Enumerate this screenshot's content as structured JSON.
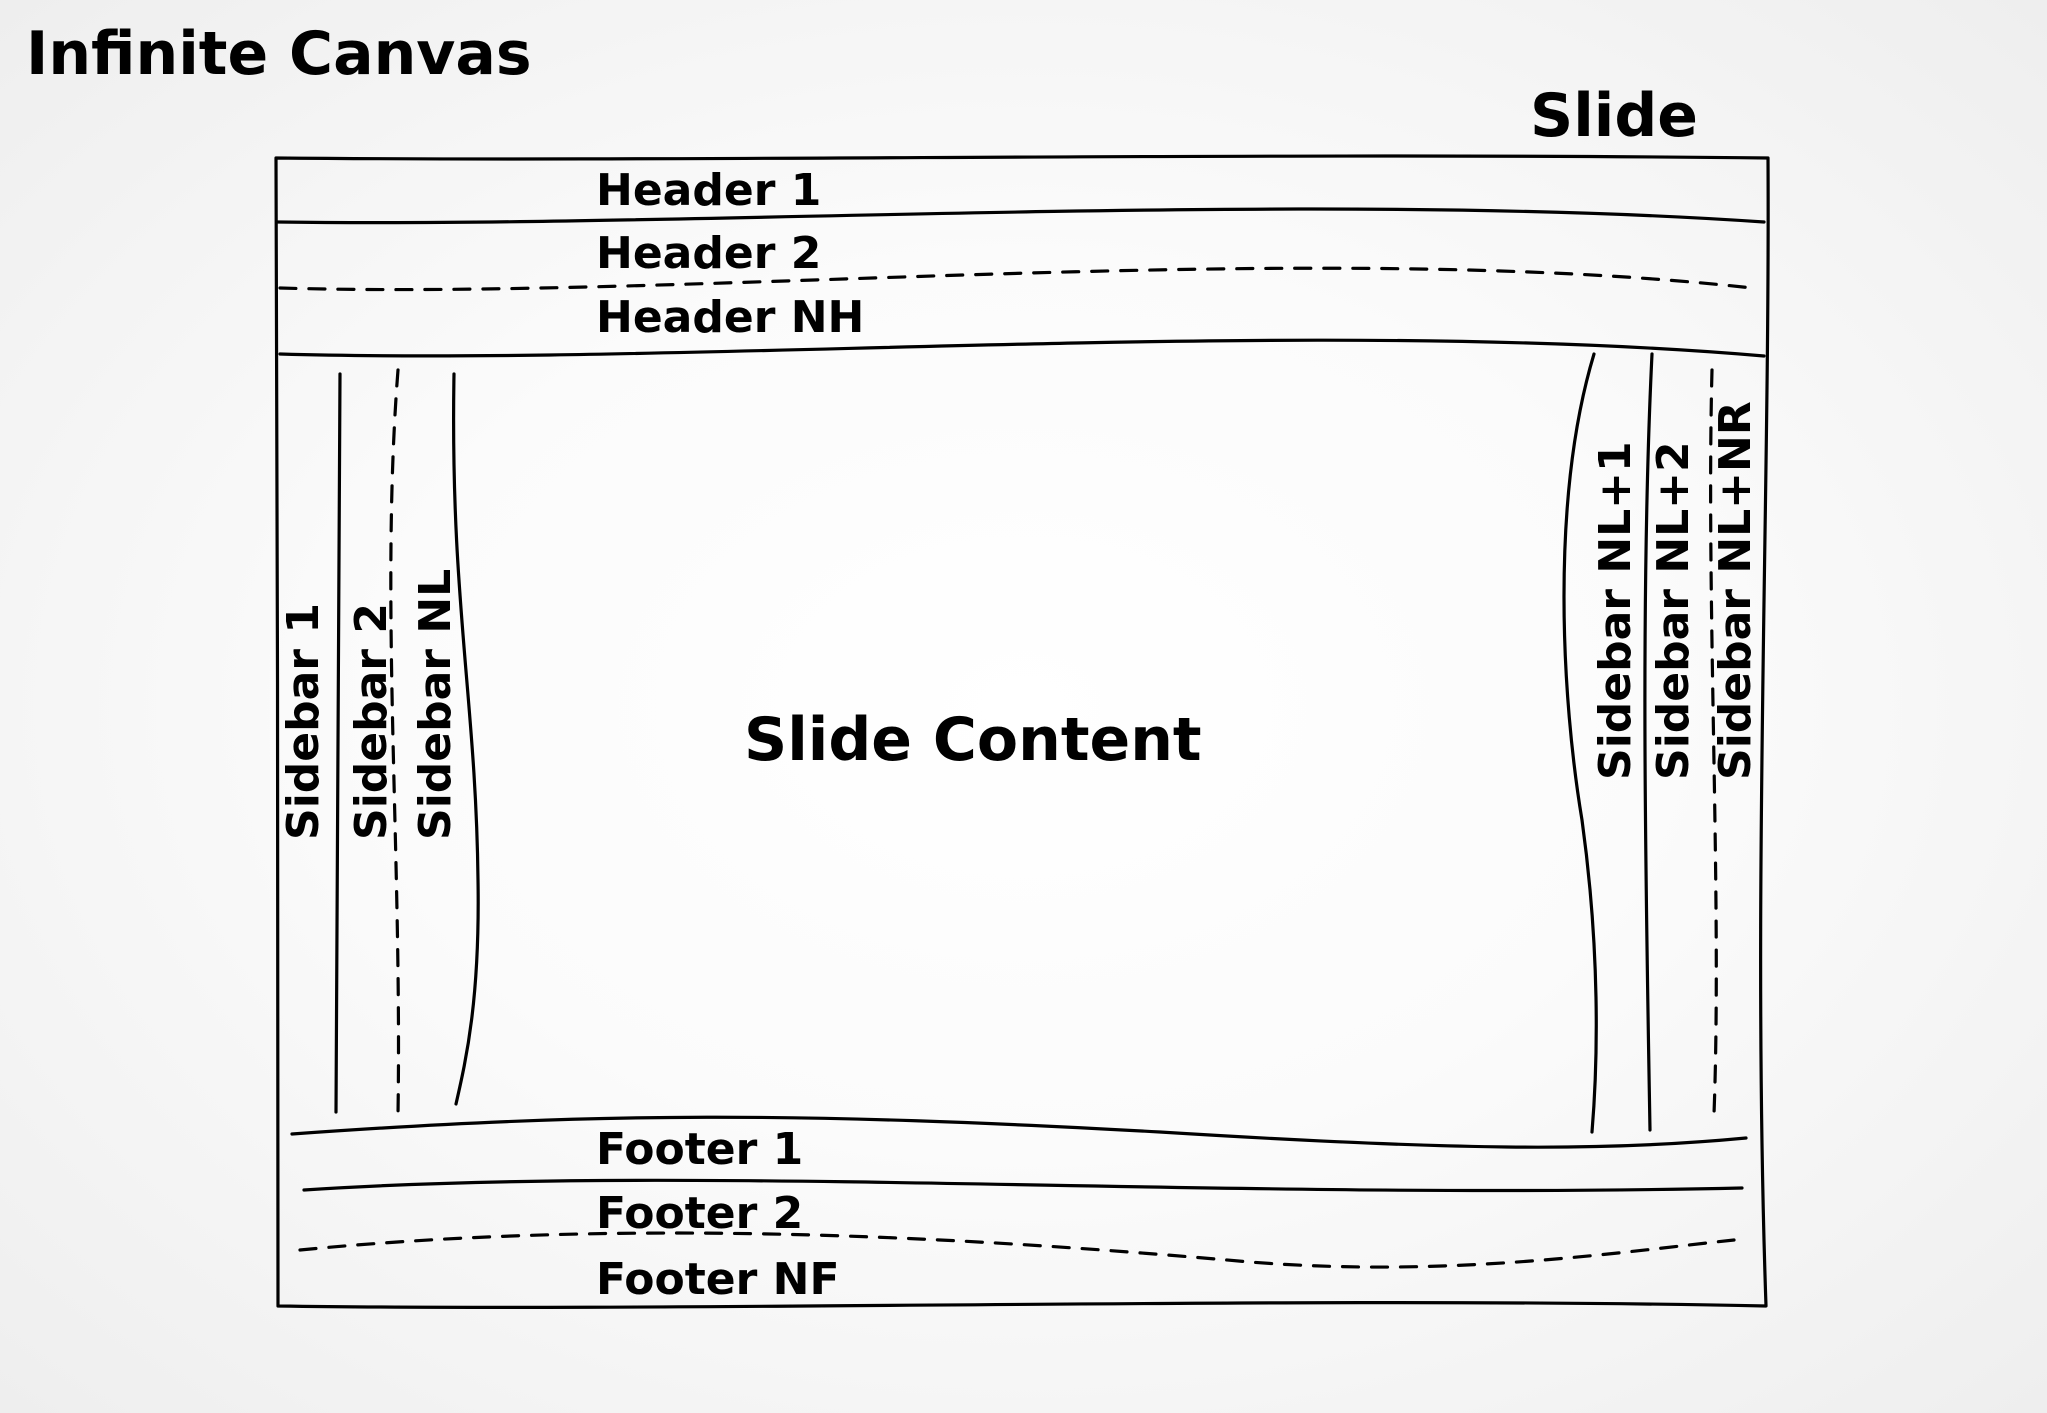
{
  "canvas": {
    "title": "Infinite Canvas"
  },
  "slide": {
    "title": "Slide",
    "content_label": "Slide Content",
    "headers": [
      "Header 1",
      "Header 2",
      "Header NH"
    ],
    "footers": [
      "Footer 1",
      "Footer 2",
      "Footer NF"
    ],
    "left_sidebars": [
      "Sidebar 1",
      "Sidebar 2",
      "Sidebar NL"
    ],
    "right_sidebars": [
      "Sidebar NL+1",
      "Sidebar NL+2",
      "Sidebar NL+NR"
    ]
  }
}
